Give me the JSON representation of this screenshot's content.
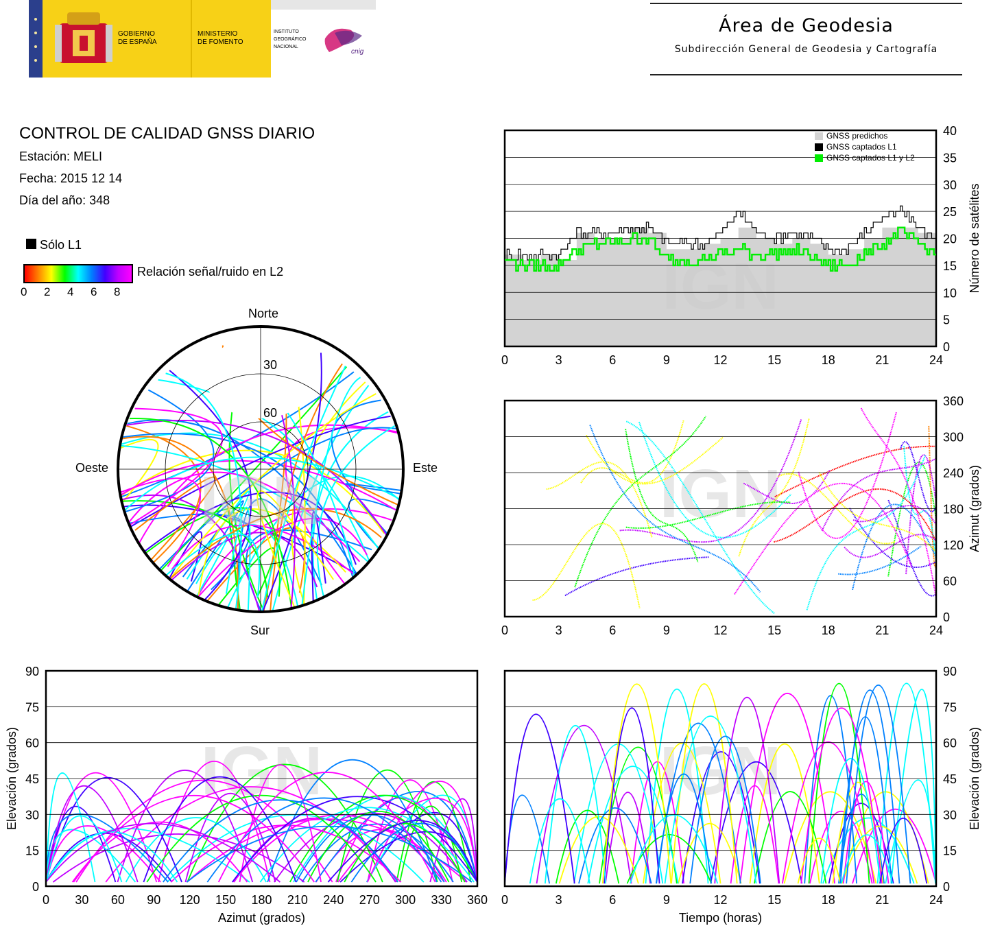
{
  "header": {
    "gov": [
      "GOBIERNO",
      "DE ESPAÑA"
    ],
    "ministry": [
      "MINISTERIO",
      "DE FOMENTO"
    ],
    "institute": [
      "INSTITUTO",
      "GEOGRÁFICO",
      "NACIONAL"
    ],
    "cnig": "cnig",
    "area_title": "Área de Geodesia",
    "area_subtitle": "Subdirección General de Geodesia y Cartografía",
    "colors": {
      "flag_red": "#c8102e",
      "flag_yellow": "#f5c400",
      "gov_yellow": "#f7d117",
      "cnig": "#d0156e"
    }
  },
  "report": {
    "title": "CONTROL DE CALIDAD GNSS DIARIO",
    "station": "Estación: MELI",
    "date": "Fecha: 2015 12 14",
    "doy": "Día del año: 348"
  },
  "legend": {
    "l1_only": "Sólo L1",
    "snr_label": "Relación señal/ruido en L2",
    "ticks": [
      "0",
      "2",
      "4",
      "6",
      "8"
    ],
    "gradient": [
      "#000000",
      "#ff0000",
      "#ff8000",
      "#ffff00",
      "#00ff00",
      "#00ffff",
      "#0080ff",
      "#4000ff",
      "#c000ff",
      "#ff00ff"
    ]
  },
  "watermark": "IGN",
  "chart_data": [
    {
      "id": "satellite-count",
      "type": "line",
      "ylabel": "Número de satélites",
      "xlim": [
        0,
        24
      ],
      "ylim": [
        0,
        40
      ],
      "xticks": [
        "0",
        "3",
        "6",
        "9",
        "12",
        "15",
        "18",
        "21",
        "24"
      ],
      "yticks": [
        "0",
        "5",
        "10",
        "15",
        "20",
        "25",
        "30",
        "35",
        "40"
      ],
      "legend_position": "top-right",
      "x": [
        0,
        1,
        2,
        3,
        4,
        5,
        6,
        7,
        8,
        9,
        10,
        11,
        12,
        13,
        14,
        15,
        16,
        17,
        18,
        19,
        20,
        21,
        22,
        23,
        24
      ],
      "series": [
        {
          "name": "GNSS predichos",
          "color": "#d3d3d3",
          "values": [
            17,
            16,
            17,
            16,
            21,
            20,
            20,
            22,
            21,
            18,
            18,
            19,
            20,
            22,
            20,
            19,
            20,
            19,
            17,
            18,
            20,
            22,
            22,
            21,
            20
          ]
        },
        {
          "name": "GNSS captados L1",
          "color": "#000000",
          "values": [
            17,
            17,
            17,
            17,
            21,
            21,
            21,
            22,
            22,
            19,
            19,
            19,
            21,
            25,
            21,
            20,
            21,
            20,
            18,
            18,
            21,
            24,
            25,
            22,
            20
          ]
        },
        {
          "name": "GNSS captados L1 y L2",
          "color": "#00ee00",
          "values": [
            16,
            15,
            15,
            15,
            18,
            19,
            19,
            20,
            20,
            16,
            16,
            16,
            17,
            18,
            17,
            17,
            18,
            17,
            15,
            15,
            17,
            19,
            21,
            19,
            17
          ]
        }
      ]
    },
    {
      "id": "skyplot",
      "type": "scatter",
      "labels": {
        "north": "Norte",
        "south": "Sur",
        "west": "Oeste",
        "east": "Este"
      },
      "ring_labels": [
        "30",
        "60"
      ]
    },
    {
      "id": "azimuth-time",
      "type": "scatter",
      "ylabel": "Azimut (grados)",
      "xlim": [
        0,
        24
      ],
      "ylim": [
        0,
        360
      ],
      "xticks": [
        "0",
        "3",
        "6",
        "9",
        "12",
        "15",
        "18",
        "21",
        "24"
      ],
      "yticks": [
        "0",
        "60",
        "120",
        "180",
        "240",
        "300",
        "360"
      ]
    },
    {
      "id": "elevation-azimuth",
      "type": "scatter",
      "xlabel": "Azimut (grados)",
      "ylabel": "Elevación (grados)",
      "xlim": [
        0,
        360
      ],
      "ylim": [
        0,
        90
      ],
      "xticks": [
        "0",
        "30",
        "60",
        "90",
        "120",
        "150",
        "180",
        "210",
        "240",
        "270",
        "300",
        "330",
        "360"
      ],
      "yticks": [
        "0",
        "15",
        "30",
        "45",
        "60",
        "75",
        "90"
      ]
    },
    {
      "id": "elevation-time",
      "type": "scatter",
      "xlabel": "Tiempo (horas)",
      "ylabel": "Elevación (grados)",
      "xlim": [
        0,
        24
      ],
      "ylim": [
        0,
        90
      ],
      "xticks": [
        "0",
        "3",
        "6",
        "9",
        "12",
        "15",
        "18",
        "21",
        "24"
      ],
      "yticks": [
        "0",
        "15",
        "30",
        "45",
        "60",
        "75",
        "90"
      ]
    }
  ]
}
